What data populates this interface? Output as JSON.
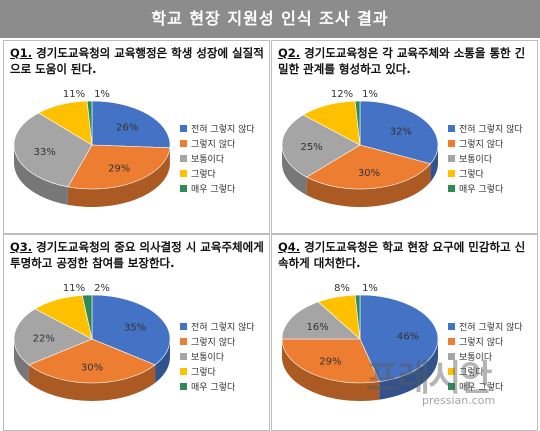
{
  "header": {
    "title": "학교 현장 지원성 인식 조사 결과"
  },
  "legend_labels": [
    "전혀 그렇지 않다",
    "그렇지 않다",
    "보통이다",
    "그렇다",
    "매우 그렇다"
  ],
  "colors": [
    "#4472c4",
    "#ed7d31",
    "#a5a5a5",
    "#ffc000",
    "#2e8b57"
  ],
  "watermark": {
    "brand": "프레시안",
    "url": "pressian.com"
  },
  "chart_data": [
    {
      "type": "pie",
      "title_no": "Q1.",
      "title": "경기도교육청의 교육행정은 학생 성장에 실질적으로 도움이 된다.",
      "labels": [
        "전혀 그렇지 않다",
        "그렇지 않다",
        "보통이다",
        "그렇다",
        "매우 그렇다"
      ],
      "values": [
        26,
        29,
        33,
        11,
        1
      ],
      "value_labels": [
        "26%",
        "29%",
        "33%",
        "11%",
        "1%"
      ],
      "legend_position": "right"
    },
    {
      "type": "pie",
      "title_no": "Q2.",
      "title": "경기도교육청은 각 교육주체와 소통을 통한 긴밀한 관계를 형성하고 있다.",
      "labels": [
        "전혀 그렇지 않다",
        "그렇지 않다",
        "보통이다",
        "그렇다",
        "매우 그렇다"
      ],
      "values": [
        32,
        30,
        25,
        12,
        1
      ],
      "value_labels": [
        "32%",
        "30%",
        "25%",
        "12%",
        "1%"
      ],
      "legend_position": "right"
    },
    {
      "type": "pie",
      "title_no": "Q3.",
      "title": "경기도교육청의 중요 의사결정 시 교육주체에게 투명하고 공정한 참여를 보장한다.",
      "labels": [
        "전혀 그렇지 않다",
        "그렇지 않다",
        "보통이다",
        "그렇다",
        "매우 그렇다"
      ],
      "values": [
        35,
        30,
        22,
        11,
        2
      ],
      "value_labels": [
        "35%",
        "30%",
        "22%",
        "11%",
        "2%"
      ],
      "legend_position": "right"
    },
    {
      "type": "pie",
      "title_no": "Q4.",
      "title": "경기도교육청은 학교 현장 요구에 민감하고 신속하게 대처한다.",
      "labels": [
        "전혀 그렇지 않다",
        "그렇지 않다",
        "보통이다",
        "그렇다",
        "매우 그렇다"
      ],
      "values": [
        46,
        29,
        16,
        8,
        1
      ],
      "value_labels": [
        "46%",
        "29%",
        "16%",
        "8%",
        "1%"
      ],
      "legend_position": "right"
    }
  ]
}
